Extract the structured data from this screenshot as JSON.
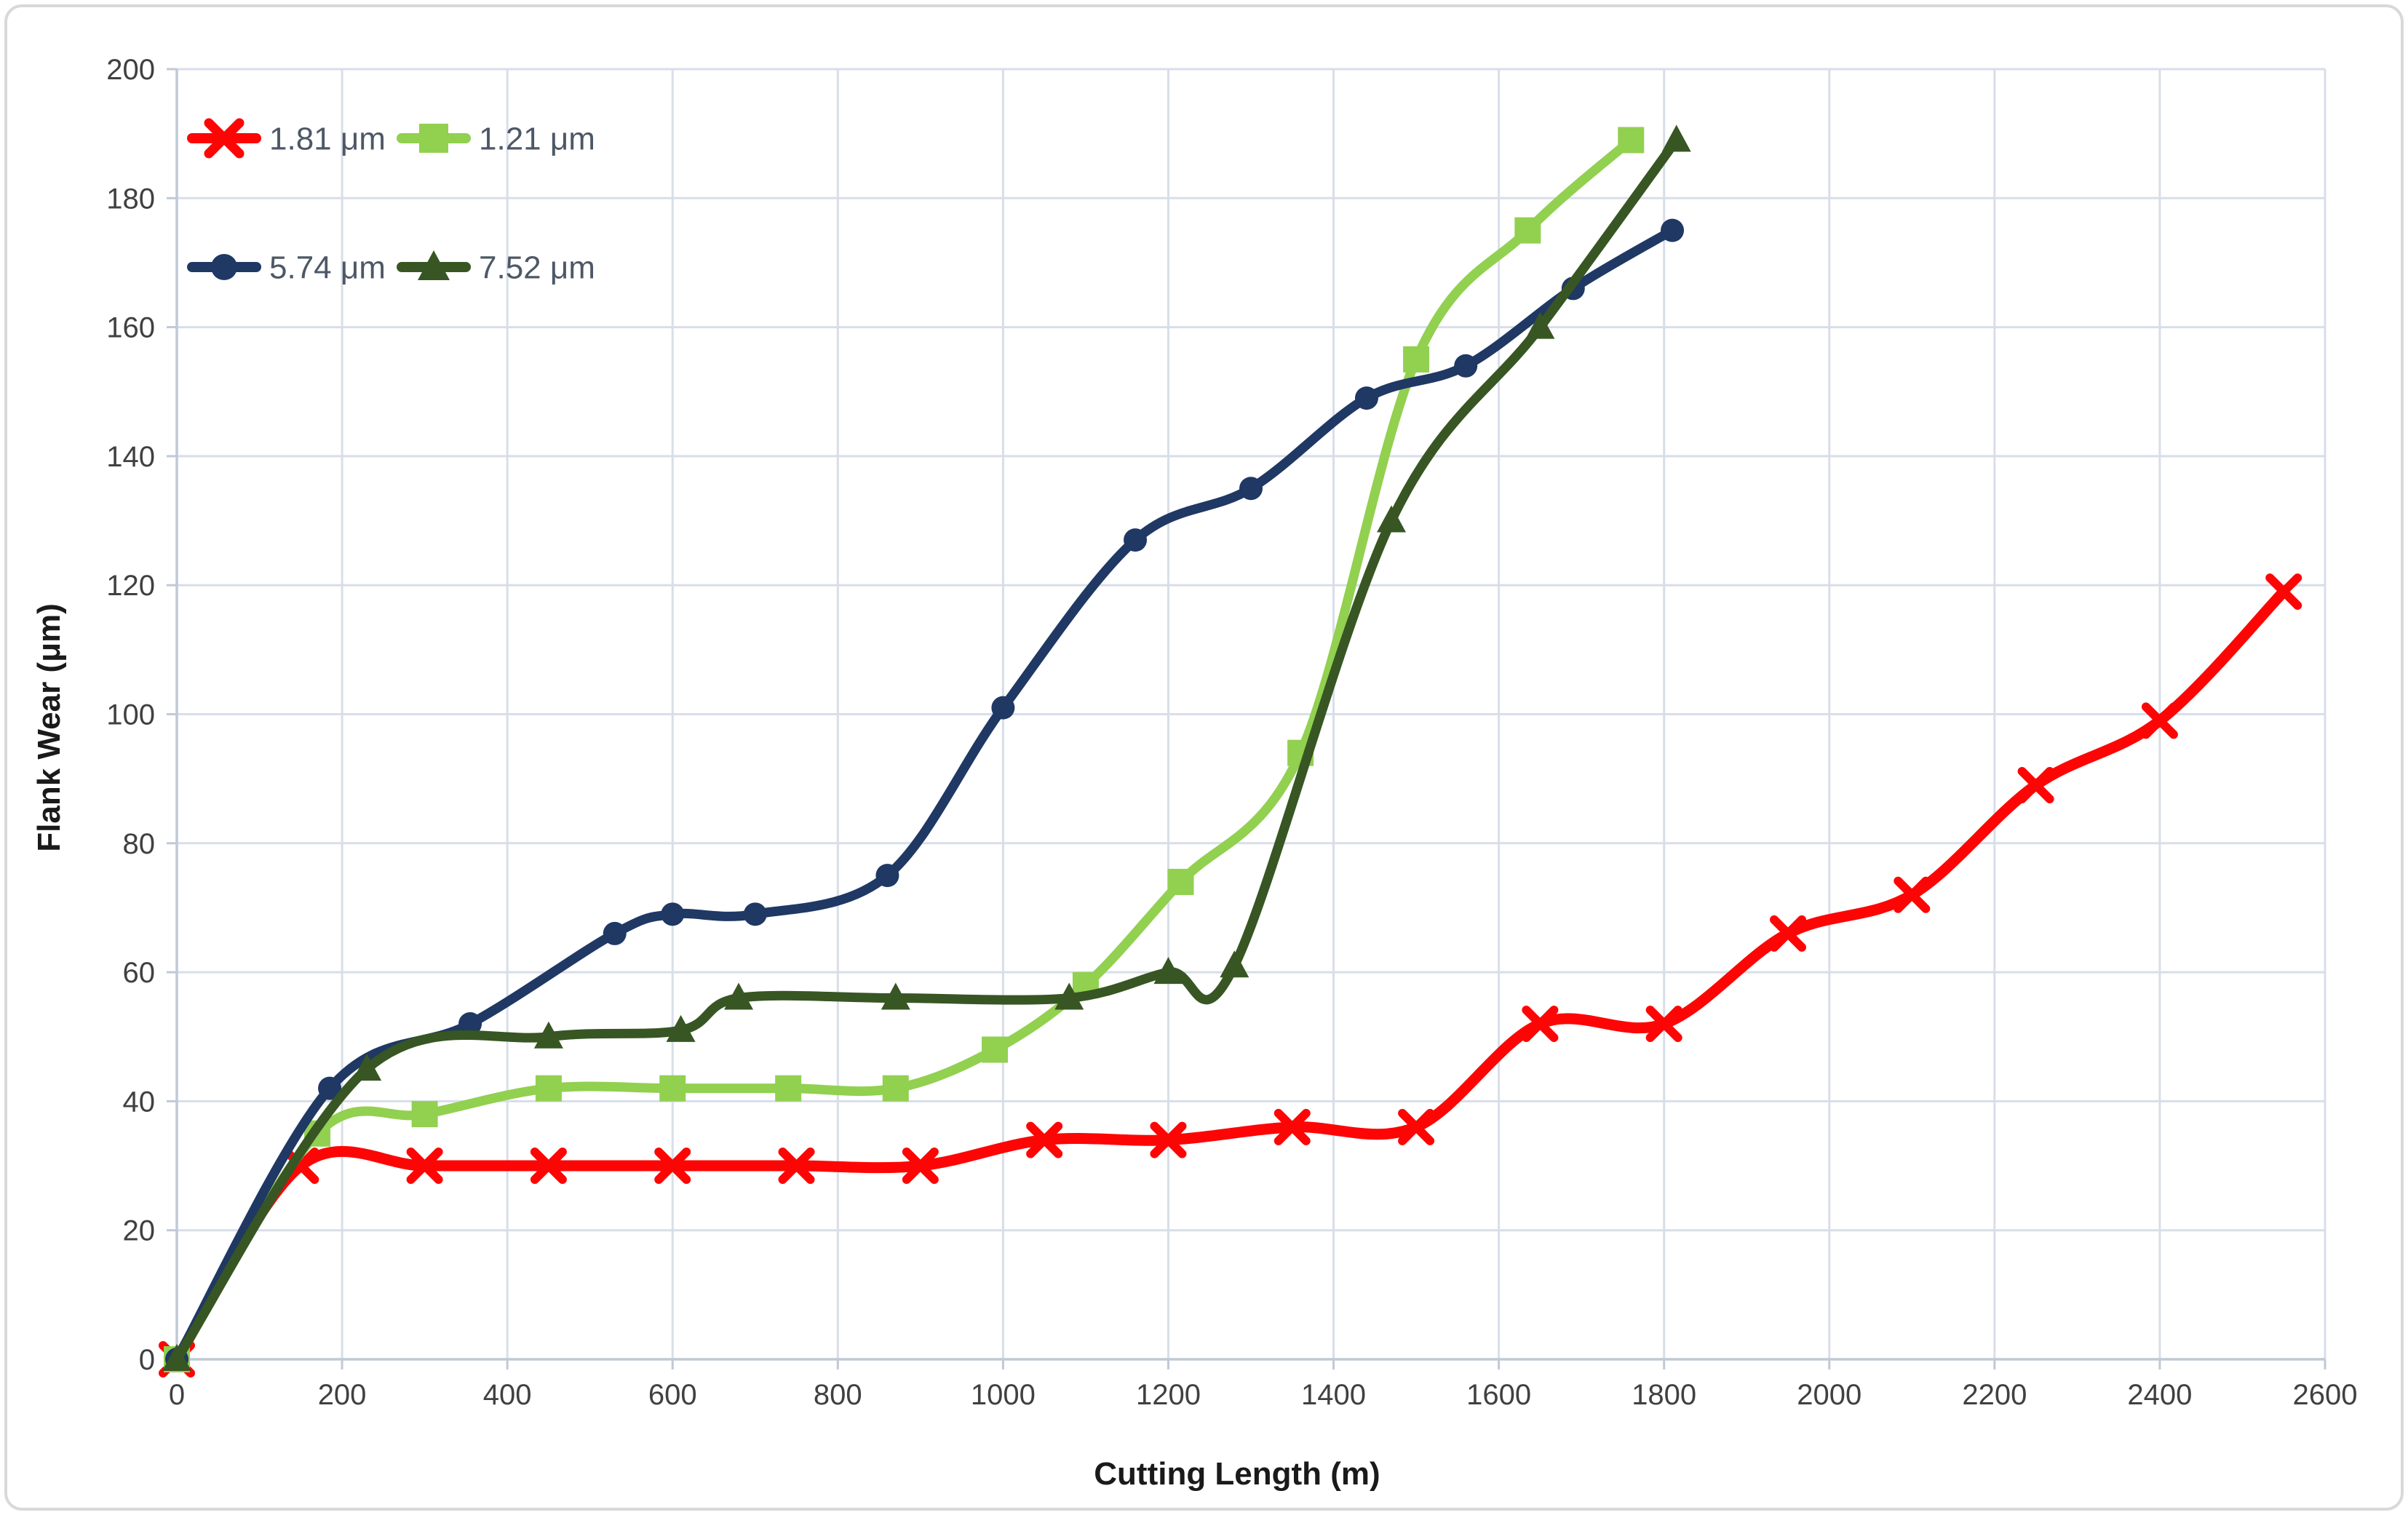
{
  "chart_data": {
    "type": "line",
    "title": "",
    "xlabel": "Cutting Length (m)",
    "ylabel": "Flank Wear (μm)",
    "xlim": [
      0,
      2600
    ],
    "xtick_step": 200,
    "ylim": [
      0,
      200
    ],
    "ytick_step": 20,
    "grid": true,
    "line_style": "smooth",
    "legend_position": "top-left-inside",
    "series": [
      {
        "name": "1.81 μm",
        "color": "#fe0505",
        "marker": "x",
        "x": [
          0,
          150,
          300,
          450,
          600,
          750,
          900,
          1050,
          1200,
          1350,
          1500,
          1650,
          1800,
          1950,
          2100,
          2250,
          2400,
          2550
        ],
        "y": [
          0,
          30,
          30,
          30,
          30,
          30,
          30,
          34,
          34,
          36,
          36,
          52,
          52,
          66,
          72,
          89,
          99,
          119
        ]
      },
      {
        "name": "1.21 μm",
        "color": "#92d050",
        "marker": "square",
        "x": [
          0,
          170,
          300,
          450,
          600,
          740,
          870,
          990,
          1100,
          1215,
          1360,
          1500,
          1635,
          1760
        ],
        "y": [
          0,
          35,
          38,
          42,
          42,
          42,
          42,
          48,
          58,
          74,
          94,
          155,
          175,
          189
        ]
      },
      {
        "name": "5.74 μm",
        "color": "#1f3864",
        "marker": "circle",
        "x": [
          0,
          185,
          355,
          530,
          600,
          700,
          860,
          1000,
          1160,
          1300,
          1440,
          1560,
          1690,
          1810
        ],
        "y": [
          0,
          42,
          52,
          66,
          69,
          69,
          75,
          101,
          127,
          135,
          149,
          154,
          166,
          175
        ]
      },
      {
        "name": "7.52 μm",
        "color": "#375623",
        "marker": "triangle-up",
        "x": [
          0,
          230,
          450,
          610,
          680,
          870,
          1080,
          1200,
          1280,
          1470,
          1650,
          1815
        ],
        "y": [
          0,
          45,
          50,
          51,
          56,
          56,
          56,
          60,
          61,
          130,
          160,
          189
        ]
      }
    ],
    "legend_rows": [
      [
        "1.81 μm",
        "1.21 μm"
      ],
      [
        "5.74 μm",
        "7.52 μm"
      ]
    ]
  },
  "axes": {
    "x_title": "Cutting Length (m)",
    "y_title": "Flank Wear (μm)"
  },
  "colors": {
    "background": "#ffffff",
    "outer_border": "#d9d9d9",
    "grid": "#d8dee9",
    "axis_line": "#c0c9d6",
    "tick_label": "#404040",
    "axis_title": "#1a1a1a",
    "legend_text": "#4d5866"
  }
}
